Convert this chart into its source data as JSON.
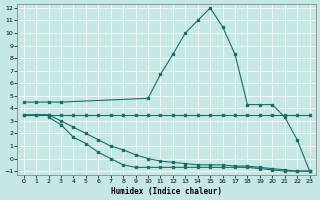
{
  "background_color": "#c5e8e5",
  "grid_color": "#ffffff",
  "line_color": "#1a6e66",
  "xlabel": "Humidex (Indice chaleur)",
  "xlim": [
    0,
    23
  ],
  "ylim": [
    -1,
    12
  ],
  "xticks": [
    0,
    1,
    2,
    3,
    4,
    5,
    6,
    7,
    8,
    9,
    10,
    11,
    12,
    13,
    14,
    15,
    16,
    17,
    18,
    19,
    20,
    21,
    22,
    23
  ],
  "yticks": [
    -1,
    0,
    1,
    2,
    3,
    4,
    5,
    6,
    7,
    8,
    9,
    10,
    11,
    12
  ],
  "line1_x": [
    0,
    1,
    2,
    3,
    10,
    11,
    12,
    13,
    14,
    15,
    16,
    17,
    18,
    19,
    20,
    21,
    22,
    23
  ],
  "line1_y": [
    4.5,
    4.5,
    4.5,
    4.5,
    4.8,
    6.7,
    8.3,
    10.0,
    11.0,
    12.0,
    10.5,
    8.3,
    4.3,
    4.3,
    4.3,
    3.3,
    1.5,
    -1.0
  ],
  "line2_x": [
    0,
    1,
    2,
    3,
    4,
    5,
    6,
    7,
    8,
    9,
    10,
    11,
    12,
    13,
    14,
    15,
    16,
    17,
    18,
    19,
    20,
    21,
    22,
    23
  ],
  "line2_y": [
    3.5,
    3.5,
    3.5,
    3.5,
    3.5,
    3.5,
    3.5,
    3.5,
    3.5,
    3.5,
    3.5,
    3.5,
    3.5,
    3.5,
    3.5,
    3.5,
    3.5,
    3.5,
    3.5,
    3.5,
    3.5,
    3.5,
    3.5,
    3.5
  ],
  "line3_x": [
    0,
    1,
    2,
    3,
    4,
    5,
    6,
    7,
    8,
    9,
    10,
    11,
    12,
    13,
    14,
    15,
    16,
    17,
    18,
    19,
    20,
    21,
    22,
    23
  ],
  "line3_y": [
    3.5,
    3.5,
    3.5,
    3.0,
    2.5,
    2.0,
    1.5,
    1.0,
    0.7,
    0.3,
    0.0,
    -0.2,
    -0.3,
    -0.4,
    -0.5,
    -0.5,
    -0.5,
    -0.6,
    -0.6,
    -0.7,
    -0.8,
    -0.9,
    -1.0,
    -1.0
  ],
  "line4_x": [
    2,
    3,
    4,
    5,
    6,
    7,
    8,
    9,
    10,
    11,
    12,
    13,
    14,
    15,
    16,
    17,
    18,
    19,
    20,
    21,
    22,
    23
  ],
  "line4_y": [
    3.3,
    2.7,
    1.7,
    1.2,
    0.5,
    0.0,
    -0.5,
    -0.7,
    -0.7,
    -0.7,
    -0.7,
    -0.7,
    -0.7,
    -0.7,
    -0.7,
    -0.7,
    -0.7,
    -0.8,
    -0.9,
    -1.0,
    -1.0,
    -1.0
  ]
}
